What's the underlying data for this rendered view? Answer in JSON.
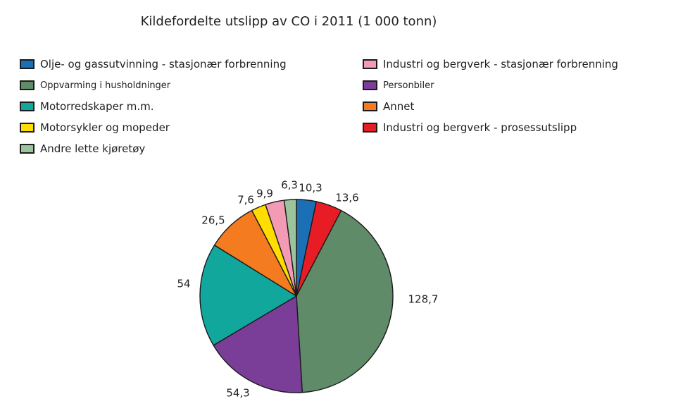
{
  "chart_data": {
    "type": "pie",
    "title": "Kildefordelte utslipp av CO i 2011 (1 000 tonn)",
    "unit": "1 000 tonn",
    "start_angle_deg": 0,
    "direction": "clockwise",
    "legend_position": "top, two columns",
    "outline_color": "#1a1a1a",
    "slices": [
      {
        "name": "Olje- og gassutvinning - stasjonær forbrenning",
        "value": 10.3,
        "label": "10,3",
        "color": "#1b6fb5"
      },
      {
        "name": "Industri og bergverk - prosessutslipp",
        "value": 13.6,
        "label": "13,6",
        "color": "#e81c25"
      },
      {
        "name": "Oppvarming i husholdninger",
        "value": 128.7,
        "label": "128,7",
        "color": "#5f8b68"
      },
      {
        "name": "Personbiler",
        "value": 54.3,
        "label": "54,3",
        "color": "#7b3e98"
      },
      {
        "name": "Motorredskaper m.m.",
        "value": 54,
        "label": "54",
        "color": "#12a79c"
      },
      {
        "name": "Annet",
        "value": 26.5,
        "label": "26,5",
        "color": "#f47b20"
      },
      {
        "name": "Motorsykler og mopeder",
        "value": 7.6,
        "label": "7,6",
        "color": "#ffdd00"
      },
      {
        "name": "Industri og bergverk - stasjonær forbrenning",
        "value": 9.9,
        "label": "9,9",
        "color": "#f39ab5"
      },
      {
        "name": "Andre lette kjøretøy",
        "value": 6.3,
        "label": "6,3",
        "color": "#9cc49c"
      }
    ]
  },
  "legend": {
    "columns": [
      {
        "items": [
          {
            "label": "Olje- og gassutvinning - stasjonær forbrenning",
            "color": "#1b6fb5"
          },
          {
            "label": "Oppvarming i husholdninger",
            "color": "#5f8b68"
          },
          {
            "label": "Motorredskaper m.m.",
            "color": "#12a79c"
          },
          {
            "label": "Motorsykler og mopeder",
            "color": "#ffdd00"
          },
          {
            "label": "Andre lette kjøretøy",
            "color": "#9cc49c"
          }
        ]
      },
      {
        "items": [
          {
            "label": "Industri og bergverk - stasjonær forbrenning",
            "color": "#f39ab5"
          },
          {
            "label": "Personbiler",
            "color": "#7b3e98"
          },
          {
            "label": "Annet",
            "color": "#f47b20"
          },
          {
            "label": "Industri og bergverk - prosessutslipp",
            "color": "#e81c25"
          }
        ]
      }
    ]
  }
}
